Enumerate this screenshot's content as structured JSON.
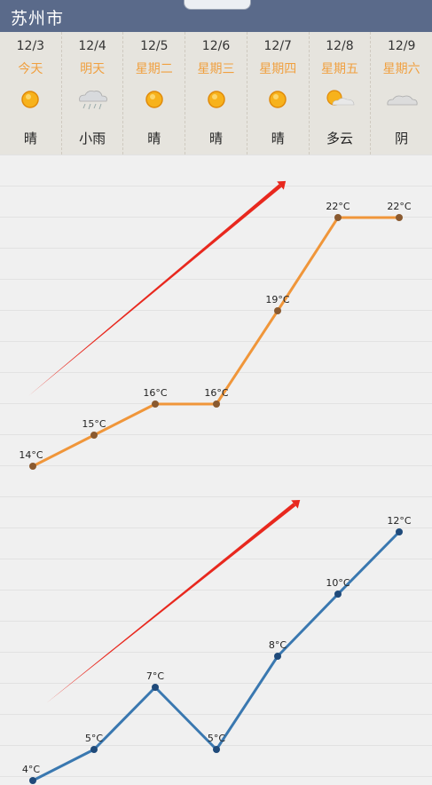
{
  "header": {
    "city": "苏州市"
  },
  "forecast": [
    {
      "date": "12/3",
      "weekday": "今天",
      "condition": "晴",
      "icon": "sun-icon"
    },
    {
      "date": "12/4",
      "weekday": "明天",
      "condition": "小雨",
      "icon": "rain-cloud-icon"
    },
    {
      "date": "12/5",
      "weekday": "星期二",
      "condition": "晴",
      "icon": "sun-icon"
    },
    {
      "date": "12/6",
      "weekday": "星期三",
      "condition": "晴",
      "icon": "sun-icon"
    },
    {
      "date": "12/7",
      "weekday": "星期四",
      "condition": "晴",
      "icon": "sun-icon"
    },
    {
      "date": "12/8",
      "weekday": "星期五",
      "condition": "多云",
      "icon": "partly-cloudy-icon"
    },
    {
      "date": "12/9",
      "weekday": "星期六",
      "condition": "阴",
      "icon": "cloud-icon"
    }
  ],
  "chart_data": {
    "type": "line",
    "series": [
      {
        "values": [
          14,
          15,
          16,
          16,
          19,
          22,
          22
        ],
        "labels": [
          "14°C",
          "15°C",
          "16°C",
          "16°C",
          "19°C",
          "22°C",
          "22°C"
        ],
        "color": "#f0963a"
      },
      {
        "values": [
          4,
          5,
          7,
          5,
          8,
          10,
          12
        ],
        "labels": [
          "4°C",
          "5°C",
          "7°C",
          "5°C",
          "8°C",
          "10°C",
          "12°C"
        ],
        "color": "#3a78b0"
      }
    ],
    "arrow_color": "#e8281e"
  }
}
